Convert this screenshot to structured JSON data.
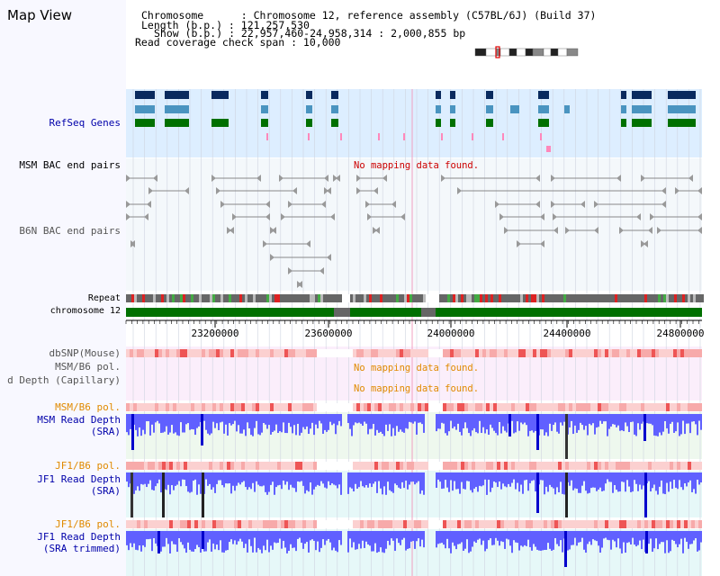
{
  "title": "Map View",
  "header": {
    "chrom_label": "Chromosome      : Chromosome 12, reference assembly (C57BL/6J) (Build 37)",
    "length_label": "Length (b.p.) : 121,257,530",
    "show_label": "Show (b.p.) : 22,957,460-24,958,314 : 2,000,855 bp",
    "span_label": "Read coverage check span : 10,000"
  },
  "tracks": {
    "refseq": "RefSeq Genes",
    "msm_bac": "MSM BAC end pairs",
    "b6n_bac": "B6N BAC end pairs",
    "repeat": "Repeat",
    "chromosome": "chromosome 12",
    "dbsnp": "dbSNP(Mouse)",
    "msm_b6_pol": "MSM/B6 pol.",
    "read_depth_cap": "d Depth (Capillary)",
    "msm_b6_pol2": "MSM/B6 pol.",
    "msm_read_depth": "MSM Read Depth",
    "msm_read_depth_sub": "(SRA)",
    "jf1_b6_pol": "JF1/B6 pol.",
    "jf1_read_depth": "JF1 Read Depth",
    "jf1_read_depth_sub": "(SRA)",
    "jf1_b6_pol2": "JF1/B6 pol.",
    "jf1_trim": "JF1 Read Depth",
    "jf1_trim_sub": "(SRA trimmed)"
  },
  "messages": {
    "nomap_bac": "No mapping data found.",
    "nomap_pol": "No mapping data found.",
    "nomap_cap": "No mapping data found."
  },
  "axis_ticks": [
    "23200000",
    "23600000",
    "24000000",
    "24400000",
    "24800000"
  ],
  "colors": {
    "gene_navy": "#0a2a5e",
    "gene_teal": "#4a94c0",
    "gene_green": "#007000",
    "chrom_green": "#007000",
    "depth_blue": "#6060ff",
    "depth_dark": "#0000cc"
  }
}
